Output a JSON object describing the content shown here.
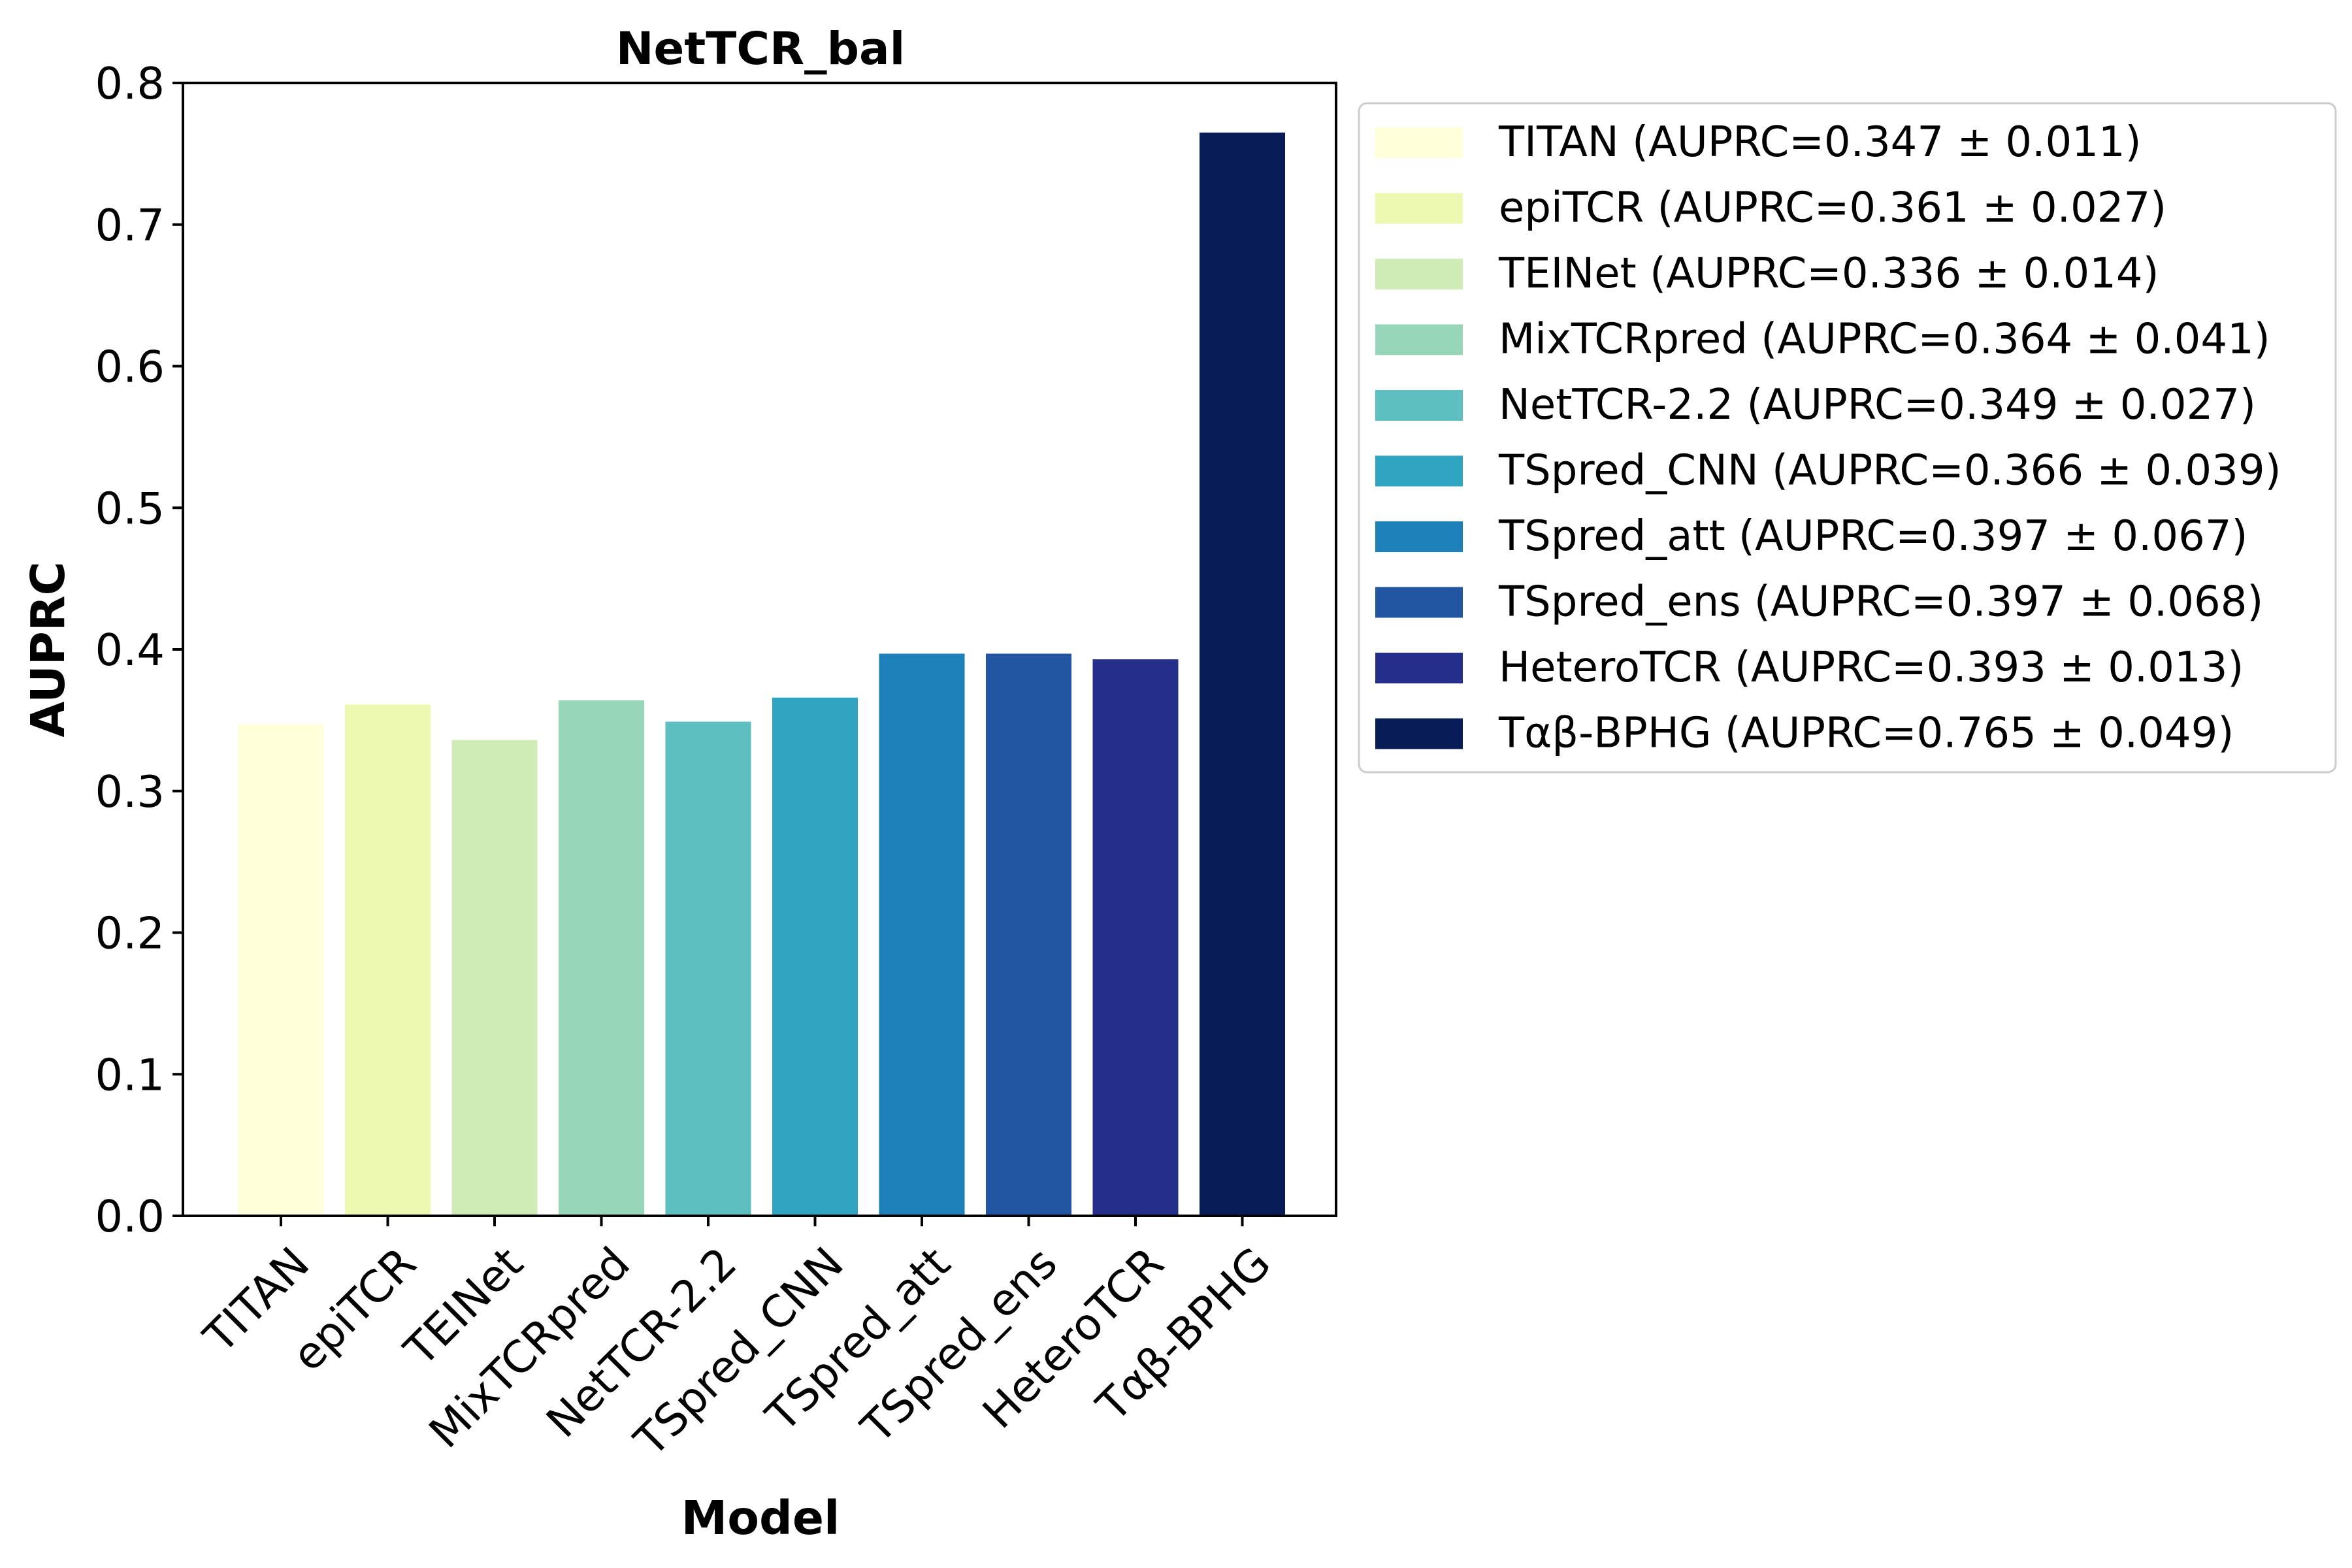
{
  "chart_data": {
    "type": "bar",
    "title": "NetTCR_bal",
    "xlabel": "Model",
    "ylabel": "AUPRC",
    "ylim": [
      0,
      0.8
    ],
    "yticks": [
      0.0,
      0.1,
      0.2,
      0.3,
      0.4,
      0.5,
      0.6,
      0.7,
      0.8
    ],
    "ytick_labels": [
      "0.0",
      "0.1",
      "0.2",
      "0.3",
      "0.4",
      "0.5",
      "0.6",
      "0.7",
      "0.8"
    ],
    "categories": [
      "TITAN",
      "epiTCR",
      "TEINet",
      "MixTCRpred",
      "NetTCR-2.2",
      "TSpred_CNN",
      "TSpred_att",
      "TSpred_ens",
      "HeteroTCR",
      "Tαβ-BPHG"
    ],
    "values": [
      0.347,
      0.361,
      0.336,
      0.364,
      0.349,
      0.366,
      0.397,
      0.397,
      0.393,
      0.765
    ],
    "colors": [
      "#FFFFD9",
      "#EDF8B1",
      "#CFECB7",
      "#97D6B8",
      "#5EBFC0",
      "#30A5C2",
      "#1E80B8",
      "#2356A2",
      "#232F8A",
      "#081D58"
    ],
    "legend": {
      "position": "outside-right",
      "entries": [
        "TITAN (AUPRC=0.347 ± 0.011)",
        "epiTCR (AUPRC=0.361 ± 0.027)",
        "TEINet (AUPRC=0.336 ± 0.014)",
        "MixTCRpred (AUPRC=0.364 ± 0.041)",
        "NetTCR-2.2 (AUPRC=0.349 ± 0.027)",
        "TSpred_CNN (AUPRC=0.366 ± 0.039)",
        "TSpred_att (AUPRC=0.397 ± 0.067)",
        "TSpred_ens (AUPRC=0.397 ± 0.068)",
        "HeteroTCR (AUPRC=0.393 ± 0.013)",
        "Tαβ-BPHG (AUPRC=0.765 ± 0.049)"
      ]
    },
    "grid": false
  }
}
